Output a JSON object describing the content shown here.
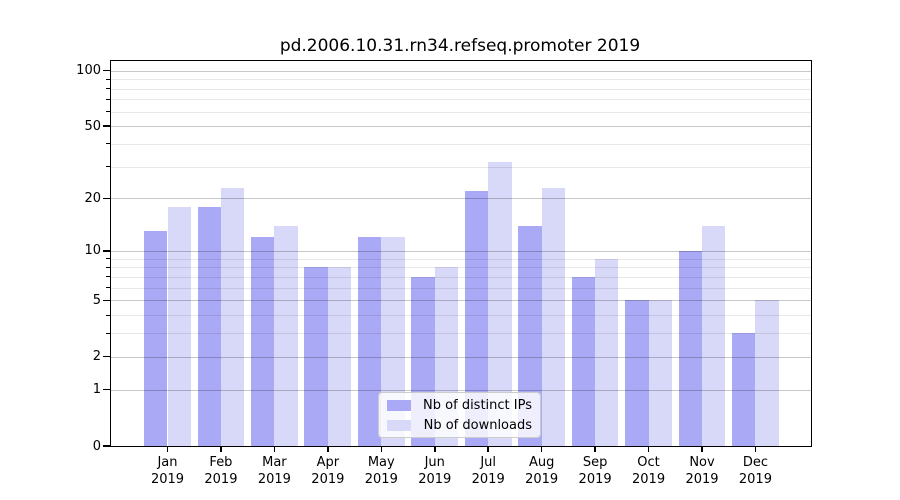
{
  "title": "pd.2006.10.31.rn34.refseq.promoter 2019",
  "legend": {
    "items": [
      {
        "label": "Nb of distinct IPs"
      },
      {
        "label": "Nb of downloads"
      }
    ]
  },
  "colors": {
    "distinct_ips": "#a9a9f5",
    "downloads": "#d8d8f8",
    "major_grid": "rgba(0,0,0,0.22)",
    "minor_grid": "rgba(0,0,0,0.09)"
  },
  "chart_data": {
    "type": "bar",
    "title": "pd.2006.10.31.rn34.refseq.promoter 2019",
    "categories": [
      "Jan 2019",
      "Feb 2019",
      "Mar 2019",
      "Apr 2019",
      "May 2019",
      "Jun 2019",
      "Jul 2019",
      "Aug 2019",
      "Sep 2019",
      "Oct 2019",
      "Nov 2019",
      "Dec 2019"
    ],
    "series": [
      {
        "name": "Nb of distinct IPs",
        "key": "distinct_ips",
        "values": [
          13,
          18,
          12,
          8,
          12,
          7,
          22,
          14,
          7,
          5,
          10,
          3
        ]
      },
      {
        "name": "Nb of downloads",
        "key": "downloads",
        "values": [
          18,
          23,
          14,
          8,
          12,
          8,
          32,
          23,
          9,
          5,
          14,
          5
        ]
      }
    ],
    "xlabel": "",
    "ylabel": "",
    "yscale": "log1p",
    "ylim": [
      0,
      112.7
    ],
    "yticks": [
      100,
      50,
      20,
      10,
      5,
      2,
      1,
      0
    ],
    "minor_yticks": [
      3,
      4,
      6,
      7,
      8,
      9,
      30,
      40,
      60,
      70,
      80,
      90
    ],
    "grid": "both-major-and-minor-drawn-over-bars",
    "legend_position": "lower center"
  }
}
